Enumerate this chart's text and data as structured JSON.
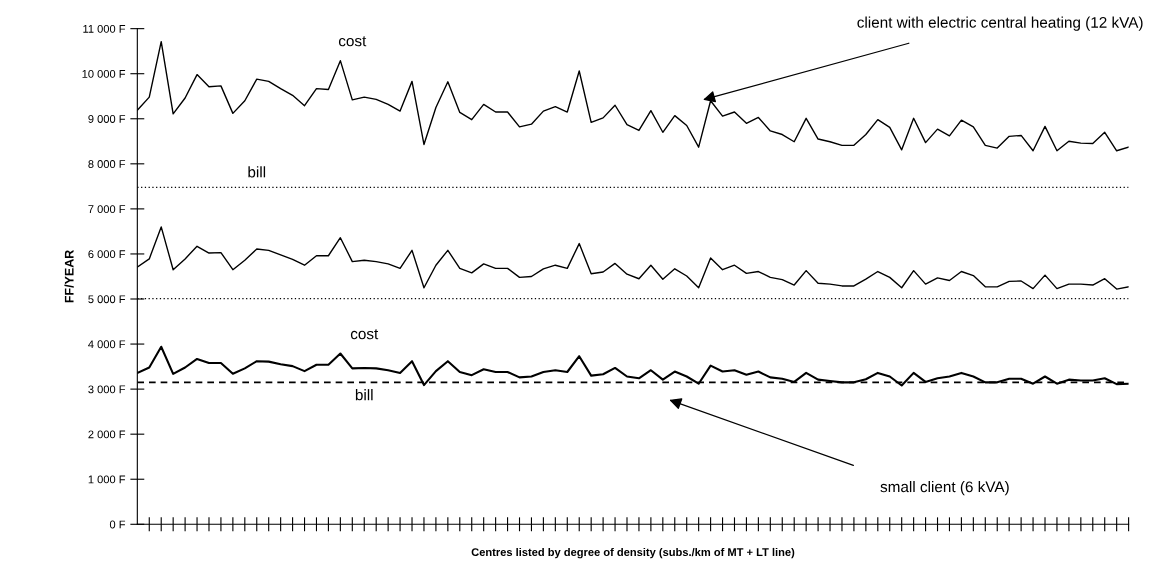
{
  "chart_data": {
    "type": "line",
    "xlabel": "Centres listed by degree of density (subs./km of MT + LT line)",
    "ylabel": "FF/YEAR",
    "categories": [
      null,
      null,
      null,
      null,
      null,
      null,
      null,
      null,
      null,
      null,
      null,
      null,
      null,
      null,
      null,
      null,
      null,
      null,
      null,
      null,
      null,
      null,
      null,
      null,
      null,
      null,
      null,
      null,
      null,
      null,
      null,
      null,
      null,
      null,
      null,
      null,
      null,
      null,
      null,
      null,
      null,
      null,
      null,
      null,
      null,
      null,
      null,
      null,
      null,
      null,
      null,
      null,
      null,
      null,
      null,
      null,
      null,
      null,
      null,
      null,
      null,
      null,
      null,
      null,
      null,
      null,
      null,
      null,
      null,
      null,
      null,
      null,
      null,
      null,
      null,
      null,
      null,
      null,
      null,
      null,
      null,
      null,
      null,
      null
    ],
    "series": [
      {
        "name": "cost",
        "color": "#000000",
        "values": [
          9190,
          9480,
          10710,
          9110,
          9460,
          9980,
          9710,
          9730,
          9120,
          9400,
          9880,
          9830,
          9670,
          9520,
          9290,
          9670,
          9650,
          10290,
          9420,
          9480,
          9430,
          9320,
          9170,
          9830,
          8430,
          9250,
          9820,
          9140,
          8980,
          9320,
          9150,
          9150,
          8820,
          8880,
          9170,
          9270,
          9150,
          10060,
          8920,
          9020,
          9300,
          8870,
          8740,
          9180,
          8700,
          9070,
          8850,
          8370,
          9400,
          9060,
          9150,
          8900,
          9030,
          8730,
          8650,
          8490,
          9010,
          8550,
          8490,
          8410,
          8410,
          8650,
          8980,
          8810,
          8310,
          9010,
          8470,
          8770,
          8620,
          8970,
          8820,
          8410,
          8350,
          8610,
          8630,
          8290,
          8830,
          8290,
          8500,
          8460,
          8450,
          8700,
          8290,
          8370
        ]
      },
      {
        "color": "#000000",
        "values": [
          5710,
          5890,
          6600,
          5650,
          5890,
          6170,
          6020,
          6030,
          5650,
          5860,
          6110,
          6080,
          5980,
          5880,
          5750,
          5960,
          5960,
          6360,
          5830,
          5860,
          5830,
          5780,
          5680,
          6080,
          5250,
          5750,
          6080,
          5680,
          5580,
          5780,
          5680,
          5680,
          5480,
          5500,
          5670,
          5750,
          5680,
          6230,
          5560,
          5600,
          5790,
          5550,
          5450,
          5750,
          5440,
          5670,
          5510,
          5250,
          5910,
          5650,
          5750,
          5570,
          5610,
          5480,
          5430,
          5310,
          5630,
          5350,
          5330,
          5290,
          5290,
          5440,
          5610,
          5480,
          5250,
          5630,
          5330,
          5470,
          5410,
          5610,
          5520,
          5270,
          5270,
          5390,
          5400,
          5230,
          5530,
          5230,
          5330,
          5330,
          5310,
          5450,
          5220,
          5270
        ]
      },
      {
        "name": "cost",
        "color": "#000000",
        "values": [
          3360,
          3480,
          3940,
          3340,
          3480,
          3670,
          3580,
          3580,
          3340,
          3460,
          3620,
          3610,
          3550,
          3510,
          3400,
          3540,
          3540,
          3790,
          3460,
          3470,
          3460,
          3420,
          3360,
          3620,
          3090,
          3400,
          3620,
          3380,
          3310,
          3440,
          3380,
          3380,
          3260,
          3280,
          3380,
          3420,
          3380,
          3730,
          3300,
          3330,
          3470,
          3280,
          3240,
          3420,
          3210,
          3390,
          3280,
          3120,
          3520,
          3390,
          3420,
          3320,
          3390,
          3260,
          3230,
          3160,
          3360,
          3210,
          3180,
          3150,
          3150,
          3220,
          3360,
          3280,
          3080,
          3360,
          3160,
          3240,
          3280,
          3360,
          3280,
          3150,
          3150,
          3230,
          3230,
          3120,
          3280,
          3120,
          3210,
          3190,
          3190,
          3240,
          3110,
          3120
        ]
      }
    ],
    "ref_lines": [
      {
        "axis": "y",
        "value": 7480,
        "label": "bill",
        "color": "#000000",
        "line_style": "dotted"
      },
      {
        "axis": "y",
        "value": 5010,
        "color": "#000000",
        "line_style": "dotted"
      },
      {
        "axis": "y",
        "value": 3150,
        "label": "bill",
        "color": "#000000",
        "line_style": "dashed"
      }
    ],
    "annotations": [
      "client with electric central heating (12 kVA)",
      "small client (6 kVA)"
    ],
    "ylim": [
      0,
      11000
    ],
    "yticks": [
      {
        "value": 0,
        "label": "0 F"
      },
      {
        "value": 1000,
        "label": "1 000 F"
      },
      {
        "value": 2000,
        "label": "2 000 F"
      },
      {
        "value": 3000,
        "label": "3 000 F"
      },
      {
        "value": 4000,
        "label": "4 000 F"
      },
      {
        "value": 5000,
        "label": "5 000 F"
      },
      {
        "value": 6000,
        "label": "6 000 F"
      },
      {
        "value": 7000,
        "label": "7 000 F"
      },
      {
        "value": 8000,
        "label": "8 000 F"
      },
      {
        "value": 9000,
        "label": "9 000 F"
      },
      {
        "value": 10000,
        "label": "10 000 F"
      },
      {
        "value": 11000,
        "label": "11 000 F"
      }
    ],
    "tick_labels": "y",
    "grid": false,
    "legend": false,
    "marker": "none",
    "line_style": "solid"
  }
}
